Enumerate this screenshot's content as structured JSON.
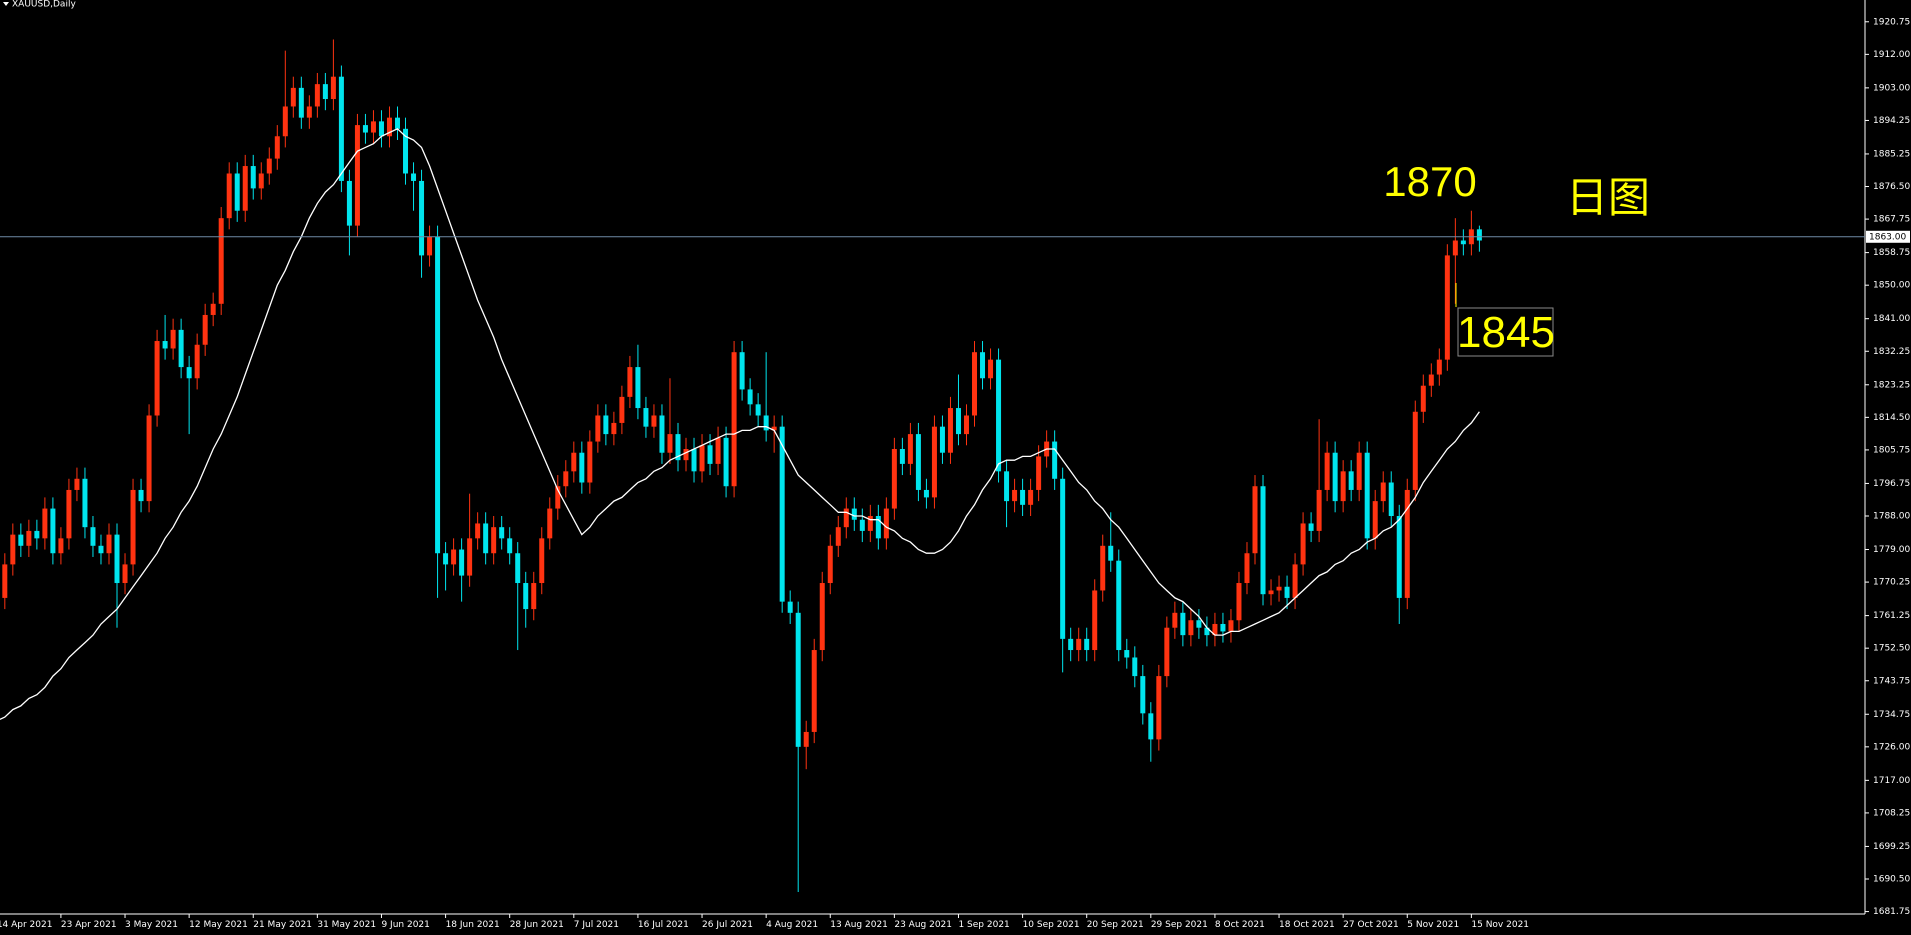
{
  "chart_data": {
    "type": "candlestick",
    "title": "XAUUSD,Daily",
    "categories": [
      "14 Apr 2021",
      null,
      null,
      null,
      null,
      null,
      null,
      null,
      "23 Apr 2021",
      null,
      null,
      null,
      null,
      null,
      null,
      null,
      "3 May 2021",
      null,
      null,
      null,
      null,
      null,
      null,
      null,
      "12 May 2021",
      null,
      null,
      null,
      null,
      null,
      null,
      null,
      "21 May 2021",
      null,
      null,
      null,
      null,
      null,
      null,
      null,
      "31 May 2021",
      null,
      null,
      null,
      null,
      null,
      null,
      null,
      "9 Jun 2021",
      null,
      null,
      null,
      null,
      null,
      null,
      null,
      "18 Jun 2021",
      null,
      null,
      null,
      null,
      null,
      null,
      null,
      "28 Jun 2021",
      null,
      null,
      null,
      null,
      null,
      null,
      null,
      "7 Jul 2021",
      null,
      null,
      null,
      null,
      null,
      null,
      null,
      "16 Jul 2021",
      null,
      null,
      null,
      null,
      null,
      null,
      null,
      "26 Jul 2021",
      null,
      null,
      null,
      null,
      null,
      null,
      null,
      "4 Aug 2021",
      null,
      null,
      null,
      null,
      null,
      null,
      null,
      "13 Aug 2021",
      null,
      null,
      null,
      null,
      null,
      null,
      null,
      "23 Aug 2021",
      null,
      null,
      null,
      null,
      null,
      null,
      null,
      "1 Sep 2021",
      null,
      null,
      null,
      null,
      null,
      null,
      null,
      "10 Sep 2021",
      null,
      null,
      null,
      null,
      null,
      null,
      null,
      "20 Sep 2021",
      null,
      null,
      null,
      null,
      null,
      null,
      null,
      "29 Sep 2021",
      null,
      null,
      null,
      null,
      null,
      null,
      null,
      "8 Oct 2021",
      null,
      null,
      null,
      null,
      null,
      null,
      null,
      "18 Oct 2021",
      null,
      null,
      null,
      null,
      null,
      null,
      null,
      "27 Oct 2021",
      null,
      null,
      null,
      null,
      null,
      null,
      null,
      "5 Nov 2021",
      null,
      null,
      null,
      null,
      null,
      null,
      null,
      "15 Nov 2021",
      null
    ],
    "open": [
      1740,
      1766,
      1775,
      1783,
      1780,
      1784,
      1782,
      1790,
      1778,
      1782,
      1795,
      1798,
      1785,
      1780,
      1778,
      1783,
      1770,
      1775,
      1795,
      1792,
      1815,
      1835,
      1833,
      1838,
      1828,
      1825,
      1834,
      1842,
      1845,
      1868,
      1880,
      1870,
      1882,
      1876,
      1880,
      1884,
      1890,
      1898,
      1903,
      1895,
      1898,
      1904,
      1900,
      1906,
      1878,
      1866,
      1893,
      1891,
      1894,
      1890,
      1895,
      1892,
      1880,
      1878,
      1858,
      1863,
      1778,
      1775,
      1779,
      1772,
      1782,
      1786,
      1778,
      1785,
      1782,
      1778,
      1770,
      1763,
      1770,
      1782,
      1790,
      1796,
      1800,
      1805,
      1797,
      1808,
      1815,
      1810,
      1813,
      1820,
      1828,
      1817,
      1812,
      1815,
      1805,
      1810,
      1803,
      1806,
      1800,
      1807,
      1802,
      1809,
      1796,
      1832,
      1822,
      1818,
      1815,
      1811,
      1812,
      1765,
      1762,
      1726,
      1730,
      1752,
      1770,
      1780,
      1785,
      1790,
      1787,
      1784,
      1788,
      1782,
      1790,
      1806,
      1802,
      1810,
      1795,
      1793,
      1812,
      1805,
      1817,
      1810,
      1815,
      1832,
      1825,
      1830,
      1800,
      1792,
      1795,
      1791,
      1795,
      1804,
      1808,
      1798,
      1755,
      1752,
      1755,
      1752,
      1768,
      1780,
      1776,
      1752,
      1750,
      1745,
      1735,
      1728,
      1745,
      1758,
      1762,
      1756,
      1760,
      1758,
      1756,
      1759,
      1757,
      1760,
      1770,
      1778,
      1796,
      1767,
      1768,
      1769,
      1766,
      1775,
      1786,
      1784,
      1795,
      1805,
      1792,
      1800,
      1795,
      1805,
      1782,
      1792,
      1797,
      1788,
      1766,
      1795,
      1816,
      1823,
      1826,
      1830,
      1858,
      1862,
      1861,
      1865
    ],
    "high": [
      1769,
      1778,
      1786,
      1786,
      1787,
      1787,
      1793,
      1793,
      1785,
      1798,
      1801,
      1801,
      1788,
      1783,
      1786,
      1786,
      1778,
      1798,
      1798,
      1818,
      1838,
      1842,
      1841,
      1841,
      1831,
      1837,
      1845,
      1848,
      1871,
      1883,
      1883,
      1885,
      1885,
      1883,
      1887,
      1893,
      1913,
      1906,
      1906,
      1901,
      1907,
      1907,
      1916,
      1909,
      1881,
      1896,
      1896,
      1897,
      1897,
      1898,
      1898,
      1895,
      1883,
      1881,
      1866,
      1866,
      1781,
      1782,
      1782,
      1794,
      1789,
      1789,
      1788,
      1788,
      1785,
      1781,
      1773,
      1773,
      1785,
      1793,
      1799,
      1803,
      1808,
      1808,
      1811,
      1818,
      1818,
      1816,
      1823,
      1831,
      1834,
      1820,
      1818,
      1818,
      1825,
      1813,
      1809,
      1809,
      1810,
      1810,
      1812,
      1812,
      1835,
      1835,
      1825,
      1821,
      1832,
      1815,
      1815,
      1768,
      1765,
      1733,
      1755,
      1773,
      1783,
      1788,
      1793,
      1793,
      1790,
      1791,
      1791,
      1793,
      1809,
      1809,
      1813,
      1813,
      1798,
      1815,
      1815,
      1820,
      1826,
      1818,
      1835,
      1835,
      1833,
      1833,
      1803,
      1798,
      1798,
      1798,
      1807,
      1811,
      1811,
      1801,
      1758,
      1758,
      1758,
      1771,
      1783,
      1789,
      1779,
      1755,
      1753,
      1748,
      1738,
      1748,
      1761,
      1765,
      1765,
      1763,
      1763,
      1761,
      1762,
      1762,
      1763,
      1773,
      1781,
      1799,
      1799,
      1771,
      1772,
      1772,
      1778,
      1789,
      1789,
      1814,
      1808,
      1808,
      1803,
      1803,
      1808,
      1808,
      1795,
      1800,
      1800,
      1791,
      1798,
      1819,
      1826,
      1829,
      1833,
      1861,
      1868,
      1865,
      1870,
      1866
    ],
    "low": [
      1735,
      1763,
      1772,
      1777,
      1777,
      1779,
      1779,
      1775,
      1775,
      1779,
      1792,
      1782,
      1777,
      1775,
      1775,
      1758,
      1767,
      1772,
      1789,
      1789,
      1812,
      1830,
      1830,
      1825,
      1810,
      1822,
      1831,
      1839,
      1842,
      1865,
      1867,
      1867,
      1873,
      1873,
      1877,
      1881,
      1887,
      1895,
      1892,
      1892,
      1895,
      1897,
      1897,
      1875,
      1858,
      1863,
      1888,
      1888,
      1887,
      1887,
      1889,
      1877,
      1870,
      1852,
      1855,
      1766,
      1768,
      1772,
      1765,
      1769,
      1779,
      1775,
      1775,
      1779,
      1775,
      1752,
      1758,
      1760,
      1767,
      1779,
      1787,
      1793,
      1797,
      1794,
      1794,
      1805,
      1807,
      1807,
      1810,
      1817,
      1814,
      1809,
      1809,
      1802,
      1802,
      1800,
      1800,
      1797,
      1797,
      1799,
      1799,
      1793,
      1793,
      1819,
      1815,
      1812,
      1808,
      1805,
      1762,
      1759,
      1687,
      1720,
      1727,
      1749,
      1767,
      1777,
      1782,
      1784,
      1781,
      1781,
      1779,
      1779,
      1787,
      1799,
      1799,
      1792,
      1790,
      1790,
      1802,
      1802,
      1807,
      1807,
      1812,
      1822,
      1822,
      1797,
      1785,
      1789,
      1788,
      1788,
      1792,
      1801,
      1795,
      1746,
      1749,
      1749,
      1749,
      1749,
      1765,
      1773,
      1749,
      1747,
      1742,
      1732,
      1722,
      1725,
      1742,
      1755,
      1753,
      1753,
      1755,
      1753,
      1753,
      1754,
      1754,
      1757,
      1767,
      1775,
      1764,
      1764,
      1765,
      1763,
      1763,
      1772,
      1781,
      1781,
      1792,
      1789,
      1789,
      1792,
      1792,
      1779,
      1779,
      1789,
      1785,
      1759,
      1763,
      1792,
      1813,
      1820,
      1823,
      1827,
      1845,
      1858,
      1858,
      1859
    ],
    "close": [
      1766,
      1775,
      1783,
      1780,
      1784,
      1782,
      1790,
      1778,
      1782,
      1795,
      1798,
      1785,
      1780,
      1778,
      1783,
      1770,
      1775,
      1795,
      1792,
      1815,
      1835,
      1833,
      1838,
      1828,
      1825,
      1834,
      1842,
      1845,
      1868,
      1880,
      1870,
      1882,
      1876,
      1880,
      1884,
      1890,
      1898,
      1903,
      1895,
      1898,
      1904,
      1900,
      1906,
      1878,
      1866,
      1893,
      1891,
      1894,
      1890,
      1895,
      1892,
      1880,
      1878,
      1858,
      1863,
      1778,
      1775,
      1779,
      1772,
      1782,
      1786,
      1778,
      1785,
      1782,
      1778,
      1770,
      1763,
      1770,
      1782,
      1790,
      1796,
      1800,
      1805,
      1797,
      1808,
      1815,
      1810,
      1813,
      1820,
      1828,
      1817,
      1812,
      1815,
      1805,
      1810,
      1803,
      1806,
      1800,
      1807,
      1802,
      1809,
      1796,
      1832,
      1822,
      1818,
      1815,
      1811,
      1812,
      1765,
      1762,
      1726,
      1730,
      1752,
      1770,
      1780,
      1785,
      1790,
      1787,
      1784,
      1788,
      1782,
      1790,
      1806,
      1802,
      1810,
      1795,
      1793,
      1812,
      1805,
      1817,
      1810,
      1815,
      1832,
      1825,
      1830,
      1800,
      1792,
      1795,
      1791,
      1795,
      1804,
      1808,
      1798,
      1755,
      1752,
      1755,
      1752,
      1768,
      1780,
      1776,
      1752,
      1750,
      1745,
      1735,
      1728,
      1745,
      1758,
      1762,
      1756,
      1760,
      1758,
      1756,
      1759,
      1757,
      1760,
      1770,
      1778,
      1796,
      1767,
      1768,
      1769,
      1766,
      1775,
      1786,
      1784,
      1795,
      1805,
      1792,
      1800,
      1795,
      1805,
      1782,
      1792,
      1797,
      1788,
      1766,
      1795,
      1816,
      1823,
      1826,
      1830,
      1858,
      1862,
      1861,
      1865,
      1862
    ],
    "up_color": "#ff3311",
    "down_color": "#00e5ee",
    "ma": {
      "color": "#ffffff",
      "values": [
        1733,
        1734,
        1736,
        1737,
        1739,
        1740,
        1742,
        1745,
        1747,
        1750,
        1752,
        1754,
        1756,
        1759,
        1761,
        1763,
        1766,
        1769,
        1772,
        1775,
        1778,
        1782,
        1785,
        1789,
        1792,
        1796,
        1801,
        1806,
        1810,
        1815,
        1820,
        1826,
        1832,
        1838,
        1844,
        1850,
        1854,
        1859,
        1863,
        1868,
        1872,
        1875,
        1877,
        1880,
        1883,
        1886,
        1887,
        1888,
        1890,
        1891,
        1892,
        1890,
        1889,
        1887,
        1882,
        1876,
        1870,
        1864,
        1858,
        1852,
        1846,
        1841,
        1836,
        1830,
        1825,
        1820,
        1815,
        1810,
        1805,
        1800,
        1795,
        1791,
        1787,
        1783,
        1785,
        1788,
        1790,
        1792,
        1793,
        1795,
        1797,
        1798,
        1800,
        1801,
        1803,
        1804,
        1805,
        1806,
        1807,
        1808,
        1809,
        1810,
        1810,
        1811,
        1811,
        1812,
        1812,
        1811,
        1807,
        1803,
        1799,
        1797,
        1795,
        1793,
        1791,
        1789,
        1789,
        1788,
        1788,
        1787,
        1787,
        1785,
        1784,
        1782,
        1781,
        1779,
        1778,
        1778,
        1779,
        1781,
        1784,
        1788,
        1791,
        1795,
        1798,
        1802,
        1803,
        1803,
        1804,
        1804,
        1805,
        1806,
        1806,
        1803,
        1800,
        1797,
        1795,
        1792,
        1790,
        1787,
        1785,
        1782,
        1779,
        1776,
        1773,
        1770,
        1768,
        1766,
        1765,
        1763,
        1761,
        1758,
        1756,
        1756,
        1757,
        1757,
        1758,
        1759,
        1760,
        1761,
        1762,
        1764,
        1766,
        1768,
        1770,
        1772,
        1773,
        1775,
        1776,
        1778,
        1779,
        1781,
        1782,
        1784,
        1785,
        1787,
        1790,
        1793,
        1797,
        1800,
        1803,
        1806,
        1808,
        1811,
        1813,
        1816
      ]
    },
    "ylim": [
      1681.1,
      1926.6
    ],
    "yticks": [
      1920.75,
      {
        "value": 1912,
        "label": "1912.00"
      },
      {
        "value": 1903,
        "label": "1903.00"
      },
      1894.25,
      1885.25,
      {
        "value": 1876.5,
        "label": "1876.50"
      },
      1867.75,
      1858.75,
      {
        "value": 1850,
        "label": "1850.00"
      },
      {
        "value": 1841,
        "label": "1841.00"
      },
      1832.25,
      1823.25,
      {
        "value": 1814.5,
        "label": "1814.50"
      },
      1805.75,
      1796.75,
      {
        "value": 1788,
        "label": "1788.00"
      },
      {
        "value": 1779,
        "label": "1779.00"
      },
      1770.25,
      1761.25,
      {
        "value": 1752.5,
        "label": "1752.50"
      },
      1743.75,
      1734.75,
      {
        "value": 1726,
        "label": "1726.00"
      },
      {
        "value": 1717,
        "label": "1717.00"
      },
      1708.25,
      1699.25,
      {
        "value": 1690.5,
        "label": "1690.50"
      },
      1681.75
    ],
    "price_line": {
      "value": 1863,
      "label": "1863.00",
      "color": "#6f8aa6"
    },
    "annotations": [
      "1870",
      "1845",
      "日图"
    ]
  }
}
